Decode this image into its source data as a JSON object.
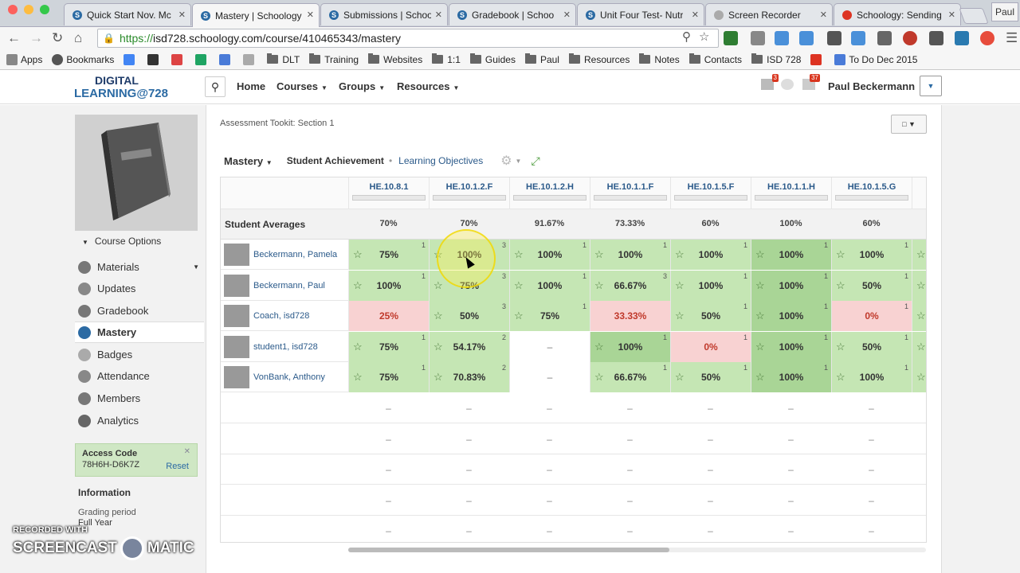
{
  "browser": {
    "tabs": [
      {
        "label": "Quick Start Nov. Mc",
        "fav": "S",
        "color": "#2b6aa3"
      },
      {
        "label": "Mastery | Schoology",
        "fav": "S",
        "color": "#2b6aa3",
        "active": true
      },
      {
        "label": "Submissions | Schoo",
        "fav": "S",
        "color": "#2b6aa3"
      },
      {
        "label": "Gradebook | Schoo",
        "fav": "S",
        "color": "#2b6aa3"
      },
      {
        "label": "Unit Four Test- Nutr",
        "fav": "S",
        "color": "#2b6aa3"
      },
      {
        "label": "Screen Recorder",
        "fav": "",
        "color": "#aaa"
      },
      {
        "label": "Schoology: Sending",
        "fav": "",
        "color": "#d32"
      }
    ],
    "profile": "Paul",
    "url_secure": "https://",
    "url_rest": "isd728.schoology.com/course/410465343/mastery",
    "bookmarks": [
      {
        "label": "Apps",
        "kind": "apps"
      },
      {
        "label": "Bookmarks",
        "kind": "star"
      },
      {
        "label": "",
        "kind": "g"
      },
      {
        "label": "",
        "kind": "s"
      },
      {
        "label": "",
        "kind": "m"
      },
      {
        "label": "",
        "kind": "drive"
      },
      {
        "label": "",
        "kind": "cal"
      },
      {
        "label": "",
        "kind": "o"
      },
      {
        "label": "DLT",
        "kind": "folder"
      },
      {
        "label": "Training",
        "kind": "folder"
      },
      {
        "label": "Websites",
        "kind": "folder"
      },
      {
        "label": "1:1",
        "kind": "folder"
      },
      {
        "label": "Guides",
        "kind": "folder"
      },
      {
        "label": "Paul",
        "kind": "folder"
      },
      {
        "label": "Resources",
        "kind": "folder"
      },
      {
        "label": "Notes",
        "kind": "folder"
      },
      {
        "label": "Contacts",
        "kind": "folder"
      },
      {
        "label": "ISD 728",
        "kind": "folder"
      },
      {
        "label": "",
        "kind": "red"
      },
      {
        "label": "To Do Dec 2015",
        "kind": "doc"
      }
    ]
  },
  "header": {
    "logo_top": "DIGITAL",
    "logo_bottom": "LEARNING@728",
    "nav": [
      "Home",
      "Courses",
      "Groups",
      "Resources"
    ],
    "mail_badge": "3",
    "notif_badge": "37",
    "username": "Paul Beckermann"
  },
  "sidebar": {
    "course_options": "Course Options",
    "items": [
      "Materials",
      "Updates",
      "Gradebook",
      "Mastery",
      "Badges",
      "Attendance",
      "Members",
      "Analytics"
    ],
    "active": "Mastery",
    "access_title": "Access Code",
    "access_code": "78H6H-D6K7Z",
    "access_reset": "Reset",
    "info_title": "Information",
    "grading_label": "Grading period",
    "grading_value": "Full Year"
  },
  "main": {
    "breadcrumb": "Assessment Tookit: Section 1",
    "tab_mastery": "Mastery",
    "tab_student_achievement": "Student Achievement",
    "tab_learning_objectives": "Learning Objectives",
    "avg_label": "Student Averages",
    "columns": [
      "HE.10.8.1",
      "HE.10.1.2.F",
      "HE.10.1.2.H",
      "HE.10.1.1.F",
      "HE.10.1.5.F",
      "HE.10.1.1.H",
      "HE.10.1.5.G"
    ],
    "averages": [
      "70%",
      "70%",
      "91.67%",
      "73.33%",
      "60%",
      "100%",
      "60%"
    ],
    "students": [
      {
        "name": "Beckermann, Pamela",
        "cells": [
          [
            "75%",
            "1",
            "g"
          ],
          [
            "100%",
            "3",
            "g"
          ],
          [
            "100%",
            "1",
            "g"
          ],
          [
            "100%",
            "1",
            "g"
          ],
          [
            "100%",
            "1",
            "g"
          ],
          [
            "100%",
            "1",
            "gd"
          ],
          [
            "100%",
            "1",
            "g"
          ]
        ]
      },
      {
        "name": "Beckermann, Paul",
        "cells": [
          [
            "100%",
            "1",
            "g"
          ],
          [
            "75%",
            "3",
            "g"
          ],
          [
            "100%",
            "1",
            "g"
          ],
          [
            "66.67%",
            "3",
            "g"
          ],
          [
            "100%",
            "1",
            "g"
          ],
          [
            "100%",
            "1",
            "gd"
          ],
          [
            "50%",
            "1",
            "g"
          ]
        ]
      },
      {
        "name": "Coach, isd728",
        "cells": [
          [
            "25%",
            "",
            "r"
          ],
          [
            "50%",
            "3",
            "g"
          ],
          [
            "75%",
            "1",
            "g"
          ],
          [
            "33.33%",
            "",
            "r"
          ],
          [
            "50%",
            "1",
            "g"
          ],
          [
            "100%",
            "1",
            "gd"
          ],
          [
            "0%",
            "1",
            "r"
          ]
        ]
      },
      {
        "name": "student1, isd728",
        "cells": [
          [
            "75%",
            "1",
            "g"
          ],
          [
            "54.17%",
            "2",
            "g"
          ],
          [
            "–",
            "",
            "w"
          ],
          [
            "100%",
            "1",
            "gd"
          ],
          [
            "0%",
            "1",
            "r"
          ],
          [
            "100%",
            "1",
            "gd"
          ],
          [
            "50%",
            "1",
            "g"
          ]
        ]
      },
      {
        "name": "VonBank, Anthony",
        "cells": [
          [
            "75%",
            "1",
            "g"
          ],
          [
            "70.83%",
            "2",
            "g"
          ],
          [
            "–",
            "",
            "w"
          ],
          [
            "66.67%",
            "1",
            "g"
          ],
          [
            "50%",
            "1",
            "g"
          ],
          [
            "100%",
            "1",
            "gd"
          ],
          [
            "100%",
            "1",
            "g"
          ]
        ]
      }
    ],
    "empty_dash": "–"
  },
  "watermark": {
    "line1": "RECORDED WITH",
    "left": "SCREENCAST",
    "right": "MATIC"
  }
}
